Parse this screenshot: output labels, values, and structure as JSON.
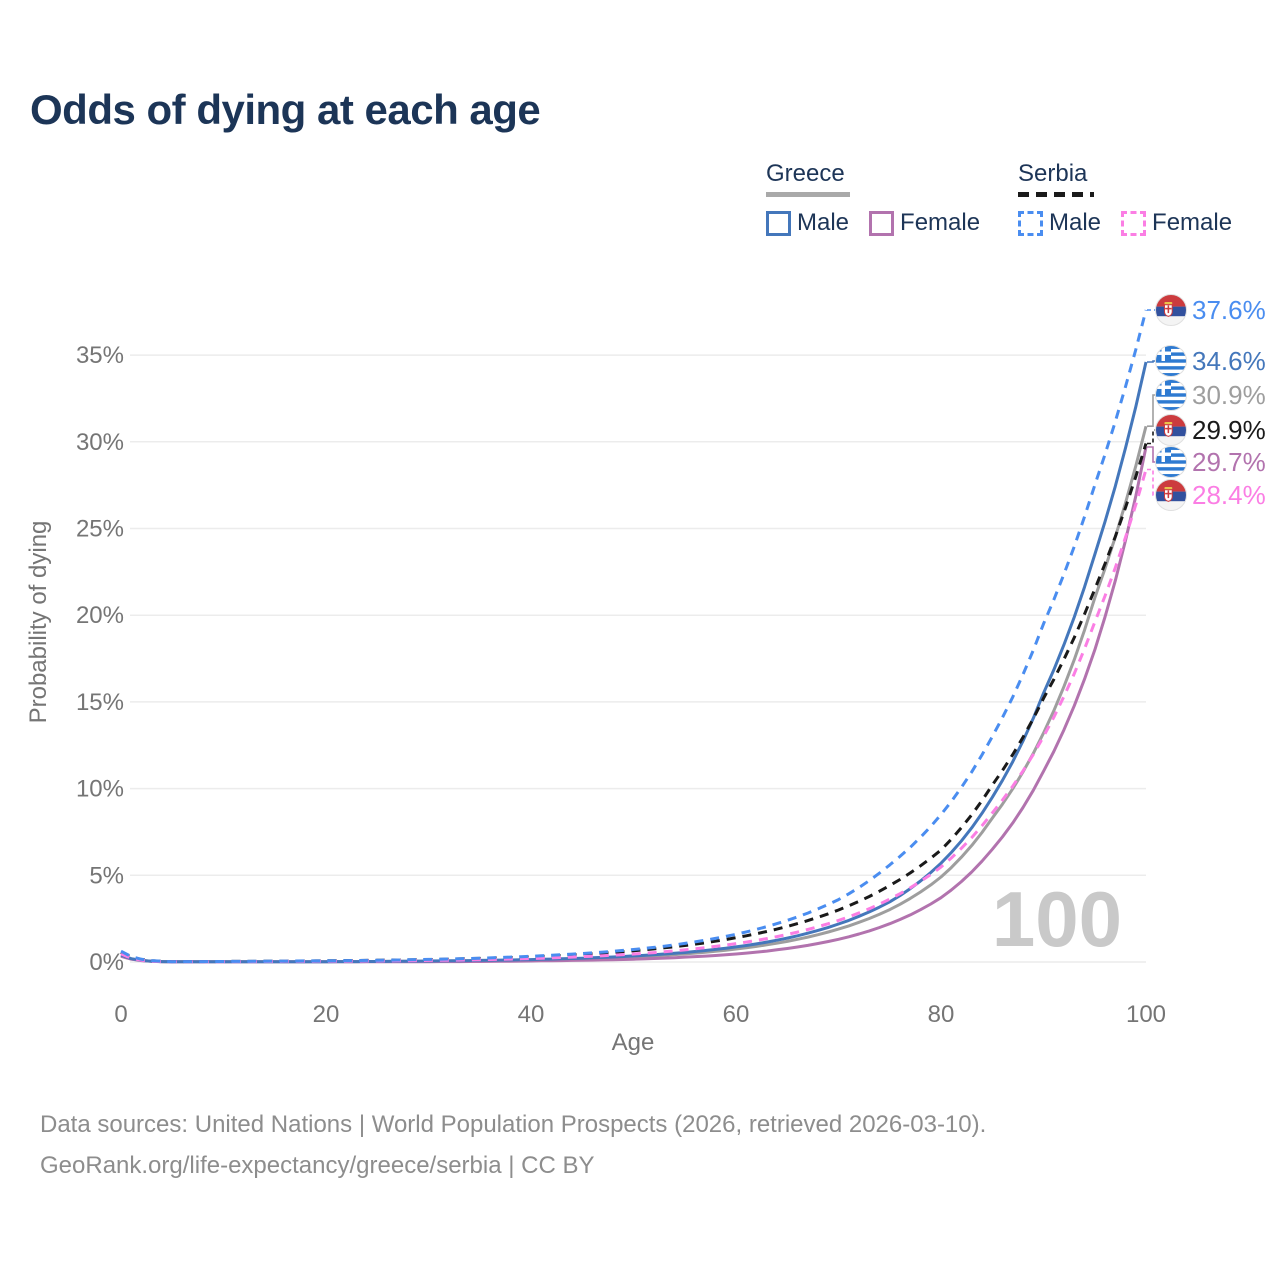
{
  "title": "Odds of dying at each age",
  "legend": {
    "groups": [
      {
        "name": "Greece",
        "line_style": "solid",
        "line_color": "#a9a9a9",
        "items": [
          {
            "label": "Male",
            "key": "greece_male",
            "color": "#4477bb",
            "dashed": false
          },
          {
            "label": "Female",
            "key": "greece_female",
            "color": "#b273ae",
            "dashed": false
          }
        ]
      },
      {
        "name": "Serbia",
        "line_style": "dashed",
        "line_color": "#1a1a1a",
        "items": [
          {
            "label": "Male",
            "key": "serbia_male",
            "color": "#4a8df0",
            "dashed": true
          },
          {
            "label": "Female",
            "key": "serbia_female",
            "color": "#fb7ee4",
            "dashed": true
          }
        ]
      }
    ]
  },
  "chart_data": {
    "type": "line",
    "title": "Odds of dying at each age",
    "xlabel": "Age",
    "ylabel": "Probability of dying",
    "xlim": [
      0,
      100
    ],
    "ylim": [
      0,
      38.5
    ],
    "grid": "horizontal",
    "legend_position": "top-right",
    "watermark": "100",
    "x_ticks": [
      {
        "v": 0,
        "label": "0"
      },
      {
        "v": 20,
        "label": "20"
      },
      {
        "v": 40,
        "label": "40"
      },
      {
        "v": 60,
        "label": "60"
      },
      {
        "v": 80,
        "label": "80"
      },
      {
        "v": 100,
        "label": "100"
      }
    ],
    "y_ticks": [
      {
        "v": 0,
        "label": "0%"
      },
      {
        "v": 5,
        "label": "5%"
      },
      {
        "v": 10,
        "label": "10%"
      },
      {
        "v": 15,
        "label": "15%"
      },
      {
        "v": 20,
        "label": "20%"
      },
      {
        "v": 25,
        "label": "25%"
      },
      {
        "v": 30,
        "label": "30%"
      },
      {
        "v": 35,
        "label": "35%"
      }
    ],
    "ages": [
      0,
      5,
      10,
      15,
      20,
      25,
      30,
      35,
      40,
      45,
      50,
      55,
      60,
      65,
      70,
      75,
      80,
      85,
      90,
      95,
      100
    ],
    "series": [
      {
        "name": "Greece all",
        "key": "greece_all",
        "flag": "greece",
        "color": "#9e9e9e",
        "dashed": false,
        "end_label": "30.9%",
        "values": [
          0.36,
          0.01,
          0.01,
          0.01,
          0.02,
          0.03,
          0.05,
          0.07,
          0.12,
          0.19,
          0.29,
          0.47,
          0.75,
          1.19,
          1.9,
          3.02,
          4.9,
          8.3,
          13.2,
          21.0,
          30.9
        ]
      },
      {
        "name": "Greece female",
        "key": "greece_female",
        "flag": "greece",
        "color": "#b273ae",
        "dashed": false,
        "end_label": "29.7%",
        "values": [
          0.33,
          0.01,
          0.01,
          0.01,
          0.01,
          0.01,
          0.02,
          0.03,
          0.06,
          0.1,
          0.16,
          0.28,
          0.46,
          0.78,
          1.31,
          2.21,
          3.71,
          6.5,
          11.0,
          18.0,
          29.7
        ]
      },
      {
        "name": "Greece male",
        "key": "greece_male",
        "flag": "greece",
        "color": "#4477bb",
        "dashed": false,
        "end_label": "34.6%",
        "values": [
          0.4,
          0.01,
          0.01,
          0.01,
          0.02,
          0.03,
          0.06,
          0.09,
          0.14,
          0.22,
          0.35,
          0.55,
          0.87,
          1.38,
          2.19,
          3.47,
          5.7,
          9.5,
          15.5,
          23.5,
          34.6
        ]
      },
      {
        "name": "Serbia all",
        "key": "serbia_all",
        "flag": "serbia",
        "color": "#1a1a1a",
        "dashed": true,
        "end_label": "29.9%",
        "values": [
          0.55,
          0.02,
          0.03,
          0.04,
          0.07,
          0.1,
          0.14,
          0.21,
          0.3,
          0.44,
          0.65,
          0.95,
          1.4,
          2.05,
          3.0,
          4.41,
          6.46,
          10.2,
          15.2,
          21.5,
          29.9
        ]
      },
      {
        "name": "Serbia female",
        "key": "serbia_female",
        "flag": "serbia",
        "color": "#fb7ee4",
        "dashed": true,
        "end_label": "28.4%",
        "values": [
          0.47,
          0.01,
          0.02,
          0.03,
          0.04,
          0.06,
          0.09,
          0.13,
          0.2,
          0.31,
          0.46,
          0.7,
          1.06,
          1.59,
          2.4,
          3.63,
          5.48,
          8.6,
          13.0,
          19.6,
          28.4
        ]
      },
      {
        "name": "Serbia male",
        "key": "serbia_male",
        "flag": "serbia",
        "color": "#4a8df0",
        "dashed": true,
        "end_label": "37.6%",
        "values": [
          0.62,
          0.02,
          0.03,
          0.05,
          0.07,
          0.1,
          0.15,
          0.22,
          0.33,
          0.49,
          0.72,
          1.07,
          1.6,
          2.4,
          3.6,
          5.6,
          8.5,
          13.0,
          19.5,
          27.5,
          37.6
        ]
      }
    ],
    "flag_colors": {
      "greece_blue": "#2e7ad1",
      "serbia_red": "#cc3b3e",
      "serbia_blue": "#32519e"
    }
  },
  "footer": {
    "line1": "Data sources: United Nations | World Population Prospects (2026, retrieved 2026-03-10).",
    "line2": "GeoRank.org/life-expectancy/greece/serbia | CC BY"
  }
}
